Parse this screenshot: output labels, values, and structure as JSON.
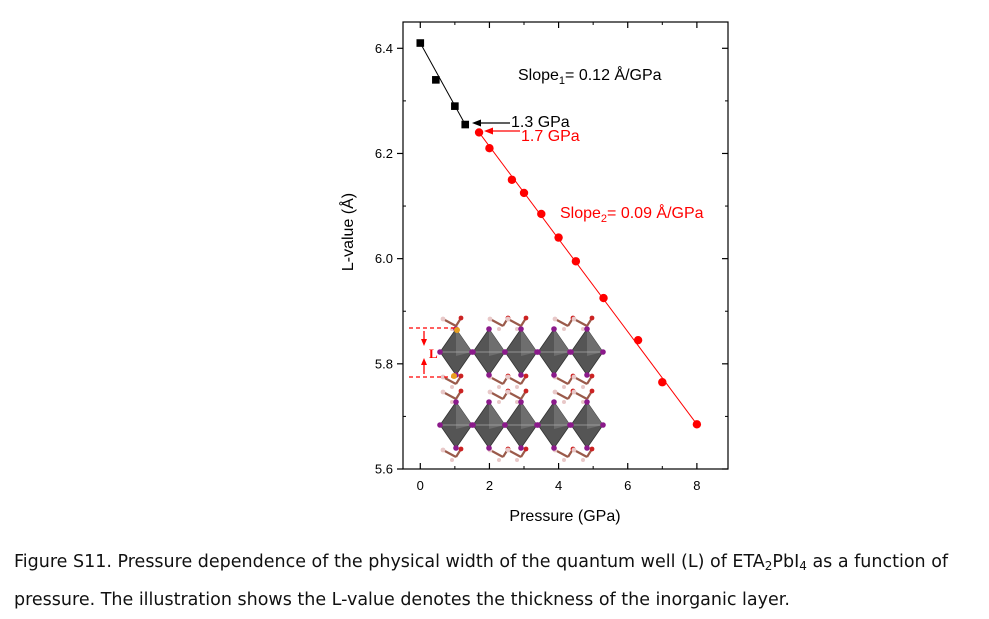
{
  "chart_data": {
    "type": "scatter",
    "xlabel": "Pressure (GPa)",
    "ylabel": "L-value (Å)",
    "xlim": [
      -0.5,
      8.9
    ],
    "ylim": [
      5.6,
      6.45
    ],
    "x_ticks": [
      "0",
      "2",
      "4",
      "6",
      "8"
    ],
    "x_tick_values": [
      0,
      2,
      4,
      6,
      8
    ],
    "y_ticks": [
      "5.6",
      "5.8",
      "6.0",
      "6.2",
      "6.4"
    ],
    "y_tick_values": [
      5.6,
      5.8,
      6.0,
      6.2,
      6.4
    ],
    "grid": false,
    "series": [
      {
        "color": "#000000",
        "marker": "square",
        "x": [
          0.0,
          0.45,
          1.0,
          1.3
        ],
        "y": [
          6.41,
          6.34,
          6.29,
          6.255
        ]
      },
      {
        "color": "#ff0000",
        "marker": "circle",
        "x": [
          1.7,
          2.0,
          2.65,
          3.0,
          3.5,
          4.0,
          4.5,
          5.3,
          6.3,
          7.0,
          8.0
        ],
        "y": [
          6.24,
          6.21,
          6.15,
          6.125,
          6.085,
          6.04,
          5.995,
          5.925,
          5.845,
          5.765,
          5.685
        ]
      }
    ],
    "fit_lines": [
      {
        "color": "#000000",
        "x": [
          0.0,
          1.3
        ],
        "y": [
          6.41,
          6.255
        ]
      },
      {
        "color": "#ff0000",
        "x": [
          1.7,
          8.0
        ],
        "y": [
          6.24,
          5.685
        ]
      }
    ],
    "annotations": {
      "slope1_main": "Slope",
      "slope1_sub": "1",
      "slope1_rest": "= 0.12 Å/GPa",
      "slope2_main": "Slope",
      "slope2_sub": "2",
      "slope2_rest": "= 0.09 Å/GPa",
      "p1": "1.3 GPa",
      "p2": "1.7 GPa",
      "inset_label": "L"
    }
  },
  "caption": {
    "part1": "Figure S11. Pressure dependence of the physical width of the quantum well (L) of ETA",
    "sub1": "2",
    "part2": "PbI",
    "sub2": "4",
    "part3": " as a function of pressure. The illustration shows the L-value denotes the thickness of the inorganic layer."
  },
  "colors": {
    "series_black": "#000000",
    "series_red": "#ff0000",
    "octahedron": "#555555",
    "iodine": "#8b1a8b",
    "organic_c": "#9a5a4a",
    "organic_h": "#e8c8c8",
    "organic_o": "#cc2222",
    "inset_marker": "#e8a020"
  }
}
